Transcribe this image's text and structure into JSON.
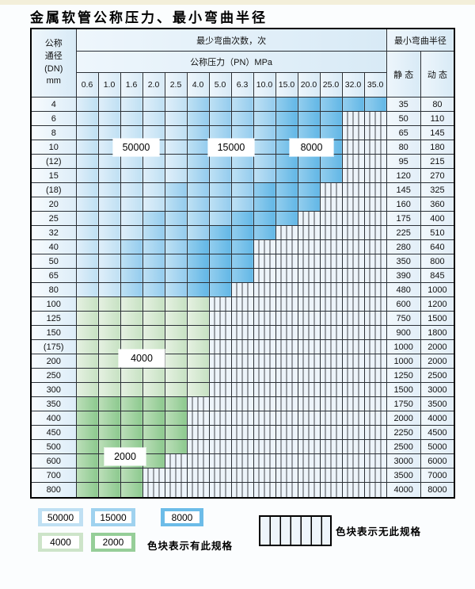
{
  "title": "金属软管公称压力、最小弯曲半径",
  "table": {
    "header": {
      "dn_label_lines": [
        "公称",
        "通径",
        "(DN)",
        "mm"
      ],
      "bend_times_label": "最少弯曲次数，次",
      "pressure_label": "公称压力（PN）MPa",
      "radius_label": "最小弯曲半径",
      "static_label": "静 态",
      "dynamic_label": "动 态",
      "pressures": [
        "0.6",
        "1.0",
        "1.6",
        "2.0",
        "2.5",
        "4.0",
        "5.0",
        "6.3",
        "10.0",
        "15.0",
        "20.0",
        "25.0",
        "32.0",
        "35.0"
      ]
    },
    "band_meaning": {
      "b1": "50000",
      "b2": "15000",
      "b3": "8000",
      "g1": "4000",
      "g2": "2000",
      "hx": "no-spec"
    },
    "region_labels": {
      "r50000": "50000",
      "r15000": "15000",
      "r8000": "8000",
      "r4000": "4000",
      "r2000": "2000"
    },
    "rows": [
      {
        "dn": "4",
        "bands": [
          [
            "b1",
            5
          ],
          [
            "b2",
            4
          ],
          [
            "b3",
            5
          ]
        ],
        "static": "35",
        "dynamic": "80"
      },
      {
        "dn": "6",
        "bands": [
          [
            "b1",
            5
          ],
          [
            "b2",
            4
          ],
          [
            "b3",
            3
          ]
        ],
        "static": "50",
        "dynamic": "110"
      },
      {
        "dn": "8",
        "bands": [
          [
            "b1",
            5
          ],
          [
            "b2",
            4
          ],
          [
            "b3",
            3
          ]
        ],
        "static": "65",
        "dynamic": "145"
      },
      {
        "dn": "10",
        "bands": [
          [
            "b1",
            5
          ],
          [
            "b2",
            4
          ],
          [
            "b3",
            3
          ]
        ],
        "static": "80",
        "dynamic": "180"
      },
      {
        "dn": "(12)",
        "bands": [
          [
            "b1",
            5
          ],
          [
            "b2",
            4
          ],
          [
            "b3",
            3
          ]
        ],
        "static": "95",
        "dynamic": "215"
      },
      {
        "dn": "15",
        "bands": [
          [
            "b1",
            5
          ],
          [
            "b2",
            4
          ],
          [
            "b3",
            3
          ]
        ],
        "static": "120",
        "dynamic": "270"
      },
      {
        "dn": "(18)",
        "bands": [
          [
            "b1",
            4
          ],
          [
            "b2",
            4
          ],
          [
            "b3",
            3
          ]
        ],
        "static": "145",
        "dynamic": "325"
      },
      {
        "dn": "20",
        "bands": [
          [
            "b1",
            4
          ],
          [
            "b2",
            4
          ],
          [
            "b3",
            3
          ]
        ],
        "static": "160",
        "dynamic": "360"
      },
      {
        "dn": "25",
        "bands": [
          [
            "b1",
            3
          ],
          [
            "b2",
            4
          ],
          [
            "b3",
            3
          ]
        ],
        "static": "175",
        "dynamic": "400"
      },
      {
        "dn": "32",
        "bands": [
          [
            "b1",
            3
          ],
          [
            "b2",
            3
          ],
          [
            "b3",
            3
          ]
        ],
        "static": "225",
        "dynamic": "510"
      },
      {
        "dn": "40",
        "bands": [
          [
            "b1",
            2
          ],
          [
            "b2",
            3
          ],
          [
            "b3",
            3
          ]
        ],
        "static": "280",
        "dynamic": "640"
      },
      {
        "dn": "50",
        "bands": [
          [
            "b1",
            2
          ],
          [
            "b2",
            3
          ],
          [
            "b3",
            3
          ]
        ],
        "static": "350",
        "dynamic": "800"
      },
      {
        "dn": "65",
        "bands": [
          [
            "b1",
            2
          ],
          [
            "b2",
            3
          ],
          [
            "b3",
            3
          ]
        ],
        "static": "390",
        "dynamic": "845"
      },
      {
        "dn": "80",
        "bands": [
          [
            "b1",
            2
          ],
          [
            "b2",
            3
          ],
          [
            "b3",
            2
          ]
        ],
        "static": "480",
        "dynamic": "1000"
      },
      {
        "dn": "100",
        "bands": [
          [
            "g1",
            6
          ]
        ],
        "static": "600",
        "dynamic": "1200"
      },
      {
        "dn": "125",
        "bands": [
          [
            "g1",
            6
          ]
        ],
        "static": "750",
        "dynamic": "1500"
      },
      {
        "dn": "150",
        "bands": [
          [
            "g1",
            6
          ]
        ],
        "static": "900",
        "dynamic": "1800"
      },
      {
        "dn": "(175)",
        "bands": [
          [
            "g1",
            6
          ]
        ],
        "static": "1000",
        "dynamic": "2000"
      },
      {
        "dn": "200",
        "bands": [
          [
            "g1",
            6
          ]
        ],
        "static": "1000",
        "dynamic": "2000"
      },
      {
        "dn": "250",
        "bands": [
          [
            "g1",
            6
          ]
        ],
        "static": "1250",
        "dynamic": "2500"
      },
      {
        "dn": "300",
        "bands": [
          [
            "g1",
            6
          ]
        ],
        "static": "1500",
        "dynamic": "3000"
      },
      {
        "dn": "350",
        "bands": [
          [
            "g2",
            5
          ]
        ],
        "static": "1750",
        "dynamic": "3500"
      },
      {
        "dn": "400",
        "bands": [
          [
            "g2",
            5
          ]
        ],
        "static": "2000",
        "dynamic": "4000"
      },
      {
        "dn": "450",
        "bands": [
          [
            "g2",
            5
          ]
        ],
        "static": "2250",
        "dynamic": "4500"
      },
      {
        "dn": "500",
        "bands": [
          [
            "g2",
            5
          ]
        ],
        "static": "2500",
        "dynamic": "5000"
      },
      {
        "dn": "600",
        "bands": [
          [
            "g2",
            4
          ]
        ],
        "static": "3000",
        "dynamic": "6000"
      },
      {
        "dn": "700",
        "bands": [
          [
            "g2",
            3
          ]
        ],
        "static": "3500",
        "dynamic": "7000"
      },
      {
        "dn": "800",
        "bands": [
          [
            "g2",
            3
          ]
        ],
        "static": "4000",
        "dynamic": "8000"
      }
    ]
  },
  "legend": {
    "swatches": [
      {
        "value": "50000",
        "band": "b1"
      },
      {
        "value": "15000",
        "band": "b2"
      },
      {
        "value": "8000",
        "band": "b3"
      },
      {
        "value": "4000",
        "band": "g1"
      },
      {
        "value": "2000",
        "band": "g2"
      }
    ],
    "has_spec_text": "色块表示有此规格",
    "no_spec_text": "色块表示无此规格"
  },
  "colors": {
    "b1": "#bfe0f3",
    "b2": "#9fd2ef",
    "b3": "#6cbce8",
    "g1": "#cde4c9",
    "g2": "#96ce98",
    "hatch_bg": "#eef5fb",
    "grid_line": "#2b3036"
  }
}
